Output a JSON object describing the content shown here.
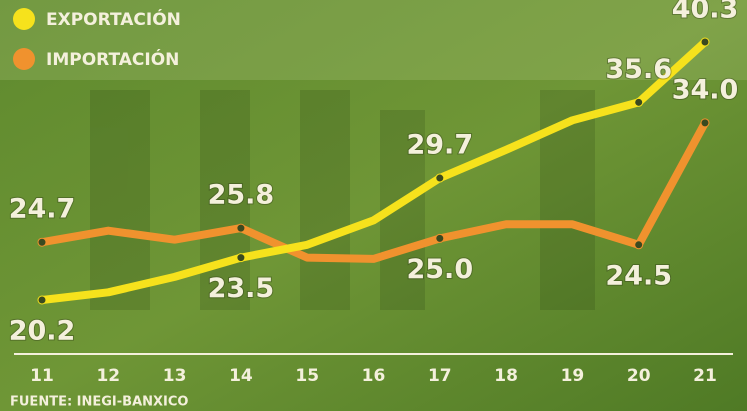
{
  "chart_data": {
    "type": "line",
    "categories": [
      "11",
      "12",
      "13",
      "14",
      "15",
      "16",
      "17",
      "18",
      "19",
      "20",
      "21"
    ],
    "series": [
      {
        "name": "EXPORTACIÓN",
        "color": "#f6e21c",
        "values": [
          20.2,
          20.8,
          22.0,
          23.5,
          24.5,
          26.4,
          29.7,
          31.9,
          34.2,
          35.6,
          40.3
        ],
        "value_labels": [
          "20.2",
          null,
          null,
          "23.5",
          null,
          null,
          "29.7",
          null,
          null,
          "35.6",
          "40.3"
        ]
      },
      {
        "name": "IMPORTACIÓN",
        "color": "#f0922e",
        "values": [
          24.7,
          25.6,
          24.9,
          25.8,
          23.5,
          23.4,
          25.0,
          26.1,
          26.1,
          24.5,
          34.0
        ],
        "value_labels": [
          "24.7",
          null,
          null,
          "25.8",
          null,
          null,
          "25.0",
          null,
          null,
          "24.5",
          "34.0"
        ]
      }
    ],
    "source": "FUENTE: INEGI-BANXICO"
  }
}
